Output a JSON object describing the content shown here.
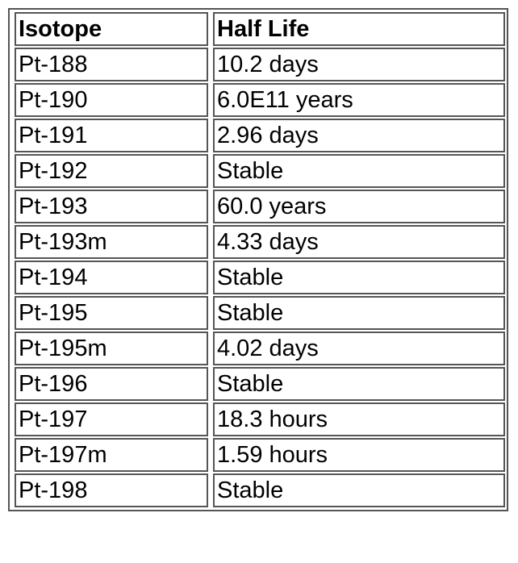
{
  "table": {
    "headers": [
      "Isotope",
      "Half Life"
    ],
    "rows": [
      [
        "Pt-188",
        "10.2 days"
      ],
      [
        "Pt-190",
        "6.0E11 years"
      ],
      [
        "Pt-191",
        "2.96 days"
      ],
      [
        "Pt-192",
        "Stable"
      ],
      [
        "Pt-193",
        "60.0 years"
      ],
      [
        "Pt-193m",
        "4.33 days"
      ],
      [
        "Pt-194",
        "Stable"
      ],
      [
        "Pt-195",
        "Stable"
      ],
      [
        "Pt-195m",
        "4.02 days"
      ],
      [
        "Pt-196",
        "Stable"
      ],
      [
        "Pt-197",
        "18.3 hours"
      ],
      [
        "Pt-197m",
        "1.59 hours"
      ],
      [
        "Pt-198",
        "Stable"
      ]
    ]
  }
}
